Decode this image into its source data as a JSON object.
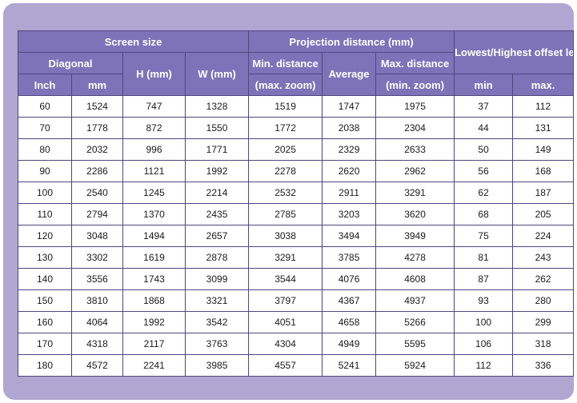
{
  "table": {
    "header": {
      "screen_size": "Screen size",
      "projection_distance": "Projection distance (mm)",
      "lens_position": "Lowest/Highest offset lens position (mm)",
      "diagonal": "Diagonal",
      "h": "H (mm)",
      "w": "W (mm)",
      "min_distance": "Min. distance",
      "min_distance_note": "(max. zoom)",
      "average": "Average",
      "max_distance": "Max. distance",
      "max_distance_note": "(min. zoom)",
      "inch": "Inch",
      "mm": "mm",
      "min": "min",
      "max": "max."
    },
    "rows": [
      [
        "60",
        "1524",
        "747",
        "1328",
        "1519",
        "1747",
        "1975",
        "37",
        "112"
      ],
      [
        "70",
        "1778",
        "872",
        "1550",
        "1772",
        "2038",
        "2304",
        "44",
        "131"
      ],
      [
        "80",
        "2032",
        "996",
        "1771",
        "2025",
        "2329",
        "2633",
        "50",
        "149"
      ],
      [
        "90",
        "2286",
        "1121",
        "1992",
        "2278",
        "2620",
        "2962",
        "56",
        "168"
      ],
      [
        "100",
        "2540",
        "1245",
        "2214",
        "2532",
        "2911",
        "3291",
        "62",
        "187"
      ],
      [
        "110",
        "2794",
        "1370",
        "2435",
        "2785",
        "3203",
        "3620",
        "68",
        "205"
      ],
      [
        "120",
        "3048",
        "1494",
        "2657",
        "3038",
        "3494",
        "3949",
        "75",
        "224"
      ],
      [
        "130",
        "3302",
        "1619",
        "2878",
        "3291",
        "3785",
        "4278",
        "81",
        "243"
      ],
      [
        "140",
        "3556",
        "1743",
        "3099",
        "3544",
        "4076",
        "4608",
        "87",
        "262"
      ],
      [
        "150",
        "3810",
        "1868",
        "3321",
        "3797",
        "4367",
        "4937",
        "93",
        "280"
      ],
      [
        "160",
        "4064",
        "1992",
        "3542",
        "4051",
        "4658",
        "5266",
        "100",
        "299"
      ],
      [
        "170",
        "4318",
        "2117",
        "3763",
        "4304",
        "4949",
        "5595",
        "106",
        "318"
      ],
      [
        "180",
        "4572",
        "2241",
        "3985",
        "4557",
        "5241",
        "5924",
        "112",
        "336"
      ]
    ]
  },
  "colors": {
    "panel_background": "#b0a6d2",
    "header_background": "#7e72b8",
    "header_text": "#ffffff",
    "border": "#4f4680",
    "cell_background": "#ffffff"
  }
}
